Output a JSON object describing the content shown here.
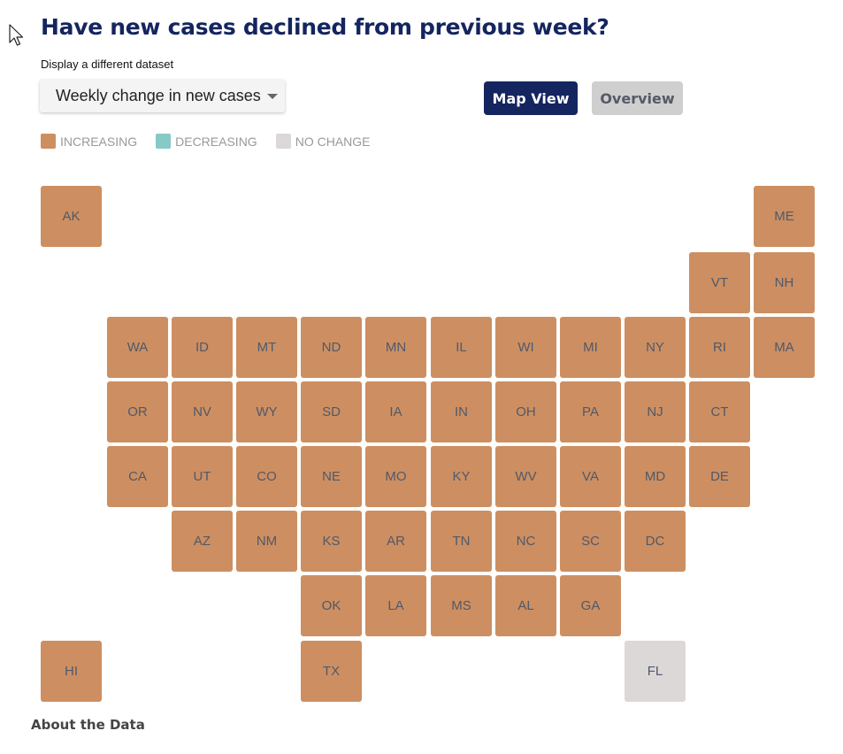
{
  "title": "Have new cases declined from previous week?",
  "dataset": {
    "label": "Display a different dataset",
    "selected": "Weekly change in new cases"
  },
  "buttons": {
    "map_view": "Map View",
    "overview": "Overview"
  },
  "legend": {
    "increasing": "INCREASING",
    "decreasing": "DECREASING",
    "no_change": "NO CHANGE"
  },
  "colors": {
    "increasing": "#cd8f61",
    "decreasing": "#86c9c6",
    "no_change": "#dcd8d8",
    "title": "#14255f"
  },
  "states": [
    {
      "abbr": "AK",
      "status": "increasing"
    },
    {
      "abbr": "ME",
      "status": "increasing"
    },
    {
      "abbr": "VT",
      "status": "increasing"
    },
    {
      "abbr": "NH",
      "status": "increasing"
    },
    {
      "abbr": "WA",
      "status": "increasing"
    },
    {
      "abbr": "ID",
      "status": "increasing"
    },
    {
      "abbr": "MT",
      "status": "increasing"
    },
    {
      "abbr": "ND",
      "status": "increasing"
    },
    {
      "abbr": "MN",
      "status": "increasing"
    },
    {
      "abbr": "IL",
      "status": "increasing"
    },
    {
      "abbr": "WI",
      "status": "increasing"
    },
    {
      "abbr": "MI",
      "status": "increasing"
    },
    {
      "abbr": "NY",
      "status": "increasing"
    },
    {
      "abbr": "RI",
      "status": "increasing"
    },
    {
      "abbr": "MA",
      "status": "increasing"
    },
    {
      "abbr": "OR",
      "status": "increasing"
    },
    {
      "abbr": "NV",
      "status": "increasing"
    },
    {
      "abbr": "WY",
      "status": "increasing"
    },
    {
      "abbr": "SD",
      "status": "increasing"
    },
    {
      "abbr": "IA",
      "status": "increasing"
    },
    {
      "abbr": "IN",
      "status": "increasing"
    },
    {
      "abbr": "OH",
      "status": "increasing"
    },
    {
      "abbr": "PA",
      "status": "increasing"
    },
    {
      "abbr": "NJ",
      "status": "increasing"
    },
    {
      "abbr": "CT",
      "status": "increasing"
    },
    {
      "abbr": "CA",
      "status": "increasing"
    },
    {
      "abbr": "UT",
      "status": "increasing"
    },
    {
      "abbr": "CO",
      "status": "increasing"
    },
    {
      "abbr": "NE",
      "status": "increasing"
    },
    {
      "abbr": "MO",
      "status": "increasing"
    },
    {
      "abbr": "KY",
      "status": "increasing"
    },
    {
      "abbr": "WV",
      "status": "increasing"
    },
    {
      "abbr": "VA",
      "status": "increasing"
    },
    {
      "abbr": "MD",
      "status": "increasing"
    },
    {
      "abbr": "DE",
      "status": "increasing"
    },
    {
      "abbr": "AZ",
      "status": "increasing"
    },
    {
      "abbr": "NM",
      "status": "increasing"
    },
    {
      "abbr": "KS",
      "status": "increasing"
    },
    {
      "abbr": "AR",
      "status": "increasing"
    },
    {
      "abbr": "TN",
      "status": "increasing"
    },
    {
      "abbr": "NC",
      "status": "increasing"
    },
    {
      "abbr": "SC",
      "status": "increasing"
    },
    {
      "abbr": "DC",
      "status": "increasing"
    },
    {
      "abbr": "OK",
      "status": "increasing"
    },
    {
      "abbr": "LA",
      "status": "increasing"
    },
    {
      "abbr": "MS",
      "status": "increasing"
    },
    {
      "abbr": "AL",
      "status": "increasing"
    },
    {
      "abbr": "GA",
      "status": "increasing"
    },
    {
      "abbr": "HI",
      "status": "increasing"
    },
    {
      "abbr": "TX",
      "status": "increasing"
    },
    {
      "abbr": "FL",
      "status": "no_change"
    }
  ],
  "about": "About the Data"
}
